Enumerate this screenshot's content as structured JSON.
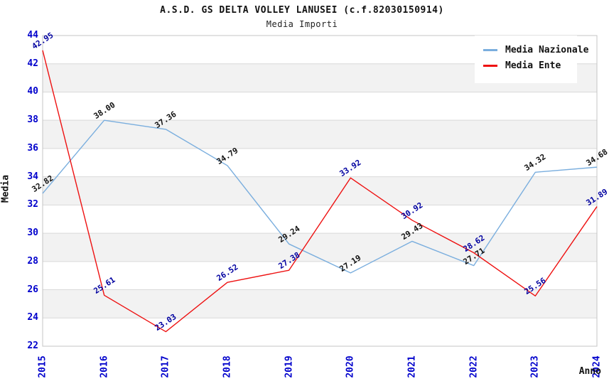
{
  "header": {
    "title": "A.S.D. GS DELTA VOLLEY LANUSEI (c.f.82030150914)",
    "subtitle": "Media Importi"
  },
  "chart_data": {
    "type": "line",
    "title": "A.S.D. GS DELTA VOLLEY LANUSEI (c.f.82030150914)",
    "subtitle": "Media Importi",
    "xlabel": "Anno",
    "ylabel": "Media",
    "x": [
      "2015",
      "2016",
      "2017",
      "2018",
      "2019",
      "2020",
      "2021",
      "2022",
      "2023",
      "2024"
    ],
    "series": [
      {
        "name": "Media Nazionale",
        "color": "#7aaede",
        "label_color": "#111111",
        "values": [
          32.82,
          38.0,
          37.36,
          34.79,
          29.24,
          27.19,
          29.43,
          27.71,
          34.32,
          34.68
        ]
      },
      {
        "name": "Media Ente",
        "color": "#ee1111",
        "label_color": "#0000a0",
        "values": [
          42.95,
          25.61,
          23.03,
          26.52,
          27.38,
          33.92,
          30.92,
          28.62,
          25.56,
          31.89
        ]
      }
    ],
    "ylim": [
      22,
      44
    ],
    "y_ticks": [
      44,
      42,
      40,
      38,
      36,
      34,
      32,
      30,
      28,
      26,
      24,
      22
    ],
    "ytick_step": 2,
    "grid": "horizontal alternating bands every 2 units",
    "legend_position": "top-right inside plot",
    "styles": {
      "tick_label_color": "#0000cc",
      "band_color": "#f2f2f2",
      "gridline_color": "#d9d9d9",
      "plot_border_color": "#c4c4c4"
    }
  }
}
